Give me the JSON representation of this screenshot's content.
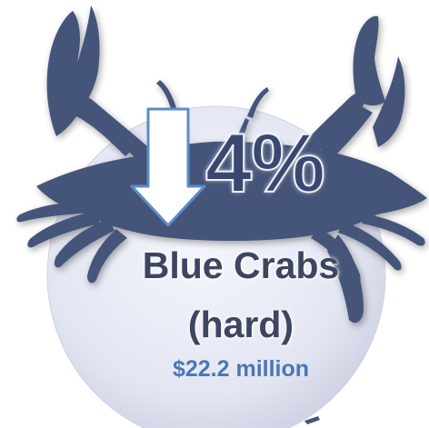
{
  "stat": {
    "percent": "4%",
    "direction_icon": "arrow-down-icon",
    "species_line1": "Blue Crabs",
    "species_line2": "(hard)",
    "value": "$22.2 million"
  },
  "colors": {
    "crab_silhouette": "#44557a",
    "circle_fill": "#e4e7f3",
    "percent_text": "#3a4870",
    "value_text": "#4a77b4",
    "arrow_fill": "#ffffff",
    "arrow_stroke": "#5b8cc8"
  },
  "icons": {
    "crab": "crab-silhouette-icon",
    "arrow": "arrow-down-icon"
  }
}
